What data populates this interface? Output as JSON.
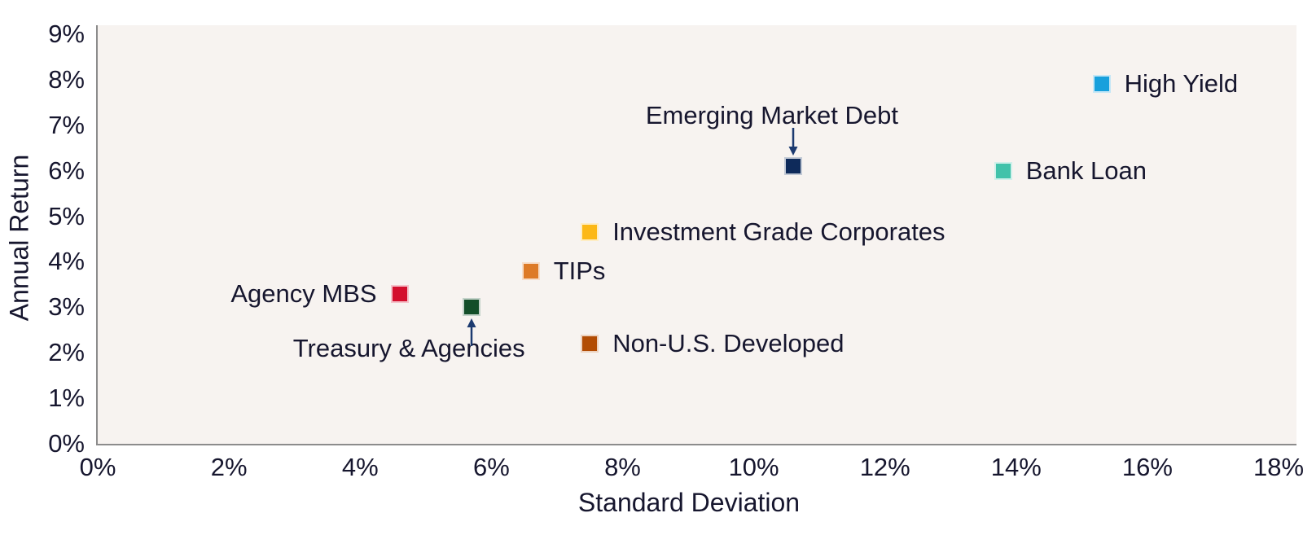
{
  "chart_data": {
    "type": "scatter",
    "title": "",
    "xlabel": "Standard Deviation",
    "ylabel": "Annual Return",
    "xlim": [
      0,
      18
    ],
    "ylim": [
      0,
      9
    ],
    "x_tick_step": 2,
    "y_tick_step": 1,
    "x_ticks": [
      "0%",
      "2%",
      "4%",
      "6%",
      "8%",
      "10%",
      "12%",
      "14%",
      "16%",
      "18%"
    ],
    "y_ticks": [
      "0%",
      "1%",
      "2%",
      "3%",
      "4%",
      "5%",
      "6%",
      "7%",
      "8%",
      "9%"
    ],
    "grid": false,
    "legend": "none (points labeled directly)",
    "plot_bg_color": "#f7f3f0",
    "axis_line_color": "#8c8c8c",
    "text_color": "#16162e",
    "annotation_arrow_color": "#1c3a70",
    "points": [
      {
        "label": "Agency MBS",
        "x": 4.6,
        "y": 3.3,
        "color": "#d30f2d",
        "label_position": "left"
      },
      {
        "label": "Treasury & Agencies",
        "x": 5.7,
        "y": 3.0,
        "color": "#134e29",
        "label_position": "below",
        "arrow": "up"
      },
      {
        "label": "TIPs",
        "x": 6.6,
        "y": 3.8,
        "color": "#dd7a27",
        "label_position": "right"
      },
      {
        "label": "Investment Grade Corporates",
        "x": 7.5,
        "y": 4.65,
        "color": "#fcb816",
        "label_position": "right"
      },
      {
        "label": "Non-U.S. Developed",
        "x": 7.5,
        "y": 2.2,
        "color": "#b24c04",
        "label_position": "right"
      },
      {
        "label": "Emerging Market Debt",
        "x": 10.6,
        "y": 6.1,
        "color": "#0e2a5a",
        "label_position": "above",
        "arrow": "down"
      },
      {
        "label": "Bank Loan",
        "x": 13.8,
        "y": 6.0,
        "color": "#41c2aa",
        "label_position": "right"
      },
      {
        "label": "High Yield",
        "x": 15.3,
        "y": 7.9,
        "color": "#18a0dc",
        "label_position": "right"
      }
    ]
  }
}
